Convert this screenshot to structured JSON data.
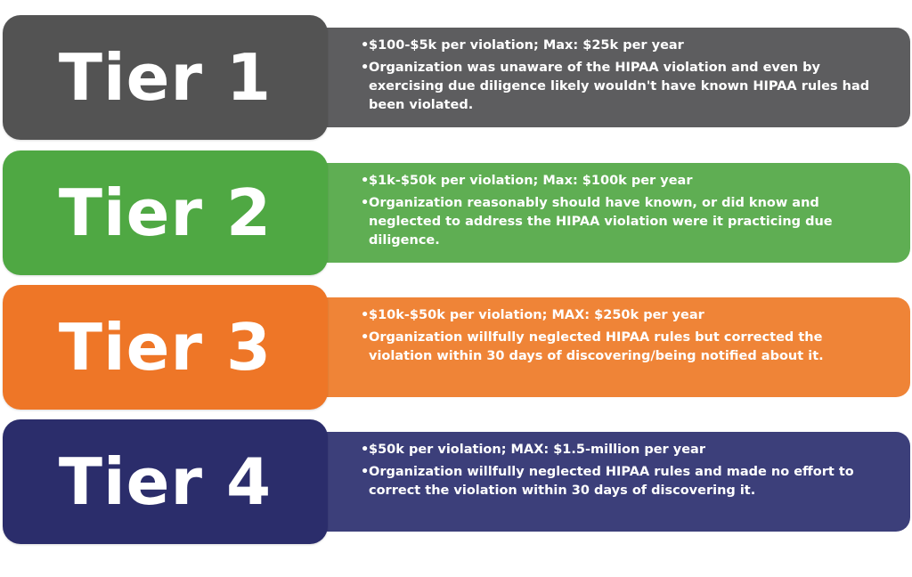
{
  "tiers": [
    {
      "label": "Tier 1",
      "color": "#535353",
      "desc_color": "#5d5d5f",
      "penalty": "$100-$5k per violation; Max: $25k per year",
      "description": "Organization was unaware of the HIPAA violation and even by exercising due diligence likely wouldn't have known HIPAA rules had been violated."
    },
    {
      "label": "Tier 2",
      "color": "#4fa843",
      "desc_color": "#5fae53",
      "penalty": "$1k-$50k per violation; Max: $100k per year",
      "description": "Organization reasonably should have known, or did know and neglected to address the HIPAA violation were it practicing due diligence."
    },
    {
      "label": "Tier 3",
      "color": "#ee7627",
      "desc_color": "#ef8437",
      "penalty": "$10k-$50k per violation; MAX: $250k per year",
      "description": "Organization willfully neglected HIPAA rules but corrected the violation within 30 days of discovering/being notified about it."
    },
    {
      "label": "Tier 4",
      "color": "#2b2d6b",
      "desc_color": "#3c3f7a",
      "penalty": "$50k per violation; MAX: $1.5-million per year",
      "description": "Organization willfully neglected HIPAA rules and made no effort to correct the violation within 30 days of discovering it."
    }
  ],
  "bullet_char": "•"
}
